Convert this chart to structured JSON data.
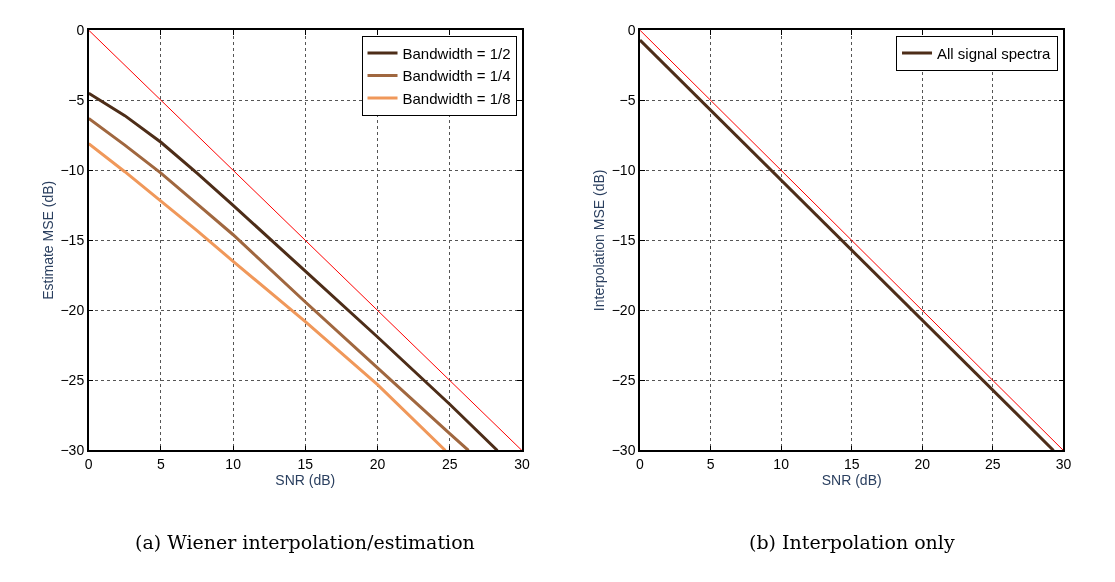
{
  "chart_data": [
    {
      "type": "line",
      "title": "(a) Wiener interpolation/estimation",
      "xlabel": "SNR (dB)",
      "ylabel": "Estimate MSE (dB)",
      "xlim": [
        0,
        30
      ],
      "ylim": [
        -30,
        0
      ],
      "xticks": [
        0,
        5,
        10,
        15,
        20,
        25,
        30
      ],
      "yticks": [
        -30,
        -25,
        -20,
        -15,
        -10,
        -5,
        0
      ],
      "grid": true,
      "legend": "top right",
      "line_style": "solid",
      "marker": "none",
      "series": [
        {
          "name": "Bandwidth = 1/2",
          "color": "#4d2d18",
          "x": [
            0,
            2.5,
            5,
            7.5,
            10,
            15,
            20,
            25,
            28.3
          ],
          "values": [
            -4.5,
            -6.1,
            -8.0,
            -10.2,
            -12.5,
            -17.2,
            -21.9,
            -26.7,
            -30
          ]
        },
        {
          "name": "Bandwidth = 1/4",
          "color": "#a0673f",
          "x": [
            0,
            2.5,
            5,
            7.5,
            10,
            15,
            20,
            25,
            26.3
          ],
          "values": [
            -6.3,
            -8.2,
            -10.2,
            -12.4,
            -14.6,
            -19.4,
            -24.1,
            -28.8,
            -30
          ]
        },
        {
          "name": "Bandwidth = 1/8",
          "color": "#f0985a",
          "x": [
            0,
            2.5,
            5,
            7.5,
            10,
            15,
            20,
            24.7
          ],
          "values": [
            -8.1,
            -10.1,
            -12.2,
            -14.3,
            -16.5,
            -20.8,
            -25.3,
            -30
          ]
        },
        {
          "color": "#ff0000",
          "x": [
            0,
            30
          ],
          "values": [
            0,
            -30
          ]
        }
      ]
    },
    {
      "type": "line",
      "title": "(b) Interpolation only",
      "xlabel": "SNR (dB)",
      "ylabel": "Interpolation MSE (dB)",
      "xlim": [
        0,
        30
      ],
      "ylim": [
        -30,
        0
      ],
      "xticks": [
        0,
        5,
        10,
        15,
        20,
        25,
        30
      ],
      "yticks": [
        -30,
        -25,
        -20,
        -15,
        -10,
        -5,
        0
      ],
      "grid": true,
      "legend": "top right",
      "line_style": "solid",
      "marker": "none",
      "series": [
        {
          "name": "All signal spectra",
          "color": "#4d2d18",
          "x": [
            0,
            29.3
          ],
          "values": [
            -0.7,
            -30
          ]
        },
        {
          "color": "#ff0000",
          "x": [
            0,
            30
          ],
          "values": [
            0,
            -30
          ]
        }
      ]
    }
  ]
}
